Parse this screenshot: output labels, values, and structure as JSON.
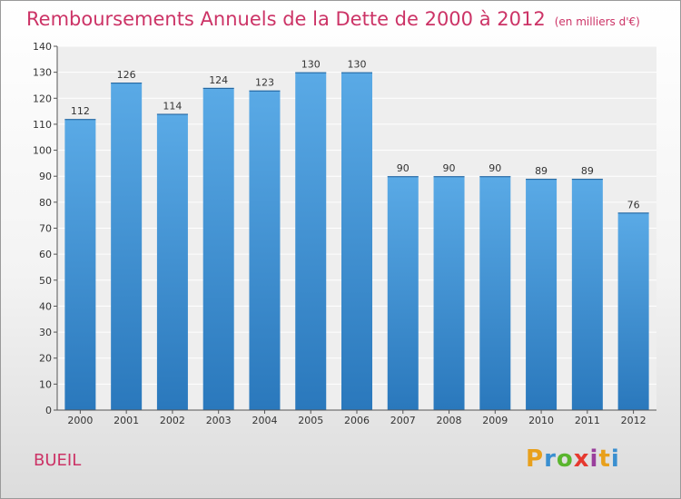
{
  "title": "Remboursements Annuels de la Dette de 2000 à 2012",
  "unit_note": "(en milliers d'€)",
  "commune": "BUEIL",
  "logo": {
    "letters": [
      "P",
      "r",
      "o",
      "x",
      "i",
      "t",
      "i"
    ],
    "colors": [
      "#e8a01c",
      "#3a8fd0",
      "#5ab52e",
      "#e6392f",
      "#9a3f9c",
      "#e8a01c",
      "#3a8fd0"
    ]
  },
  "colors": {
    "bar": "#4a9ee0",
    "bar_dark": "#2a78bc",
    "title": "#cc3366"
  },
  "chart_data": {
    "type": "bar",
    "title": "Remboursements Annuels de la Dette de 2000 à 2012",
    "categories": [
      "2000",
      "2001",
      "2002",
      "2003",
      "2004",
      "2005",
      "2006",
      "2007",
      "2008",
      "2009",
      "2010",
      "2011",
      "2012"
    ],
    "values": [
      112,
      126,
      114,
      124,
      123,
      130,
      130,
      90,
      90,
      90,
      89,
      89,
      76
    ],
    "ylim": [
      0,
      140
    ],
    "yticks": [
      0,
      10,
      20,
      30,
      40,
      50,
      60,
      70,
      80,
      90,
      100,
      110,
      120,
      130,
      140
    ],
    "grid": true,
    "legend": "none"
  }
}
